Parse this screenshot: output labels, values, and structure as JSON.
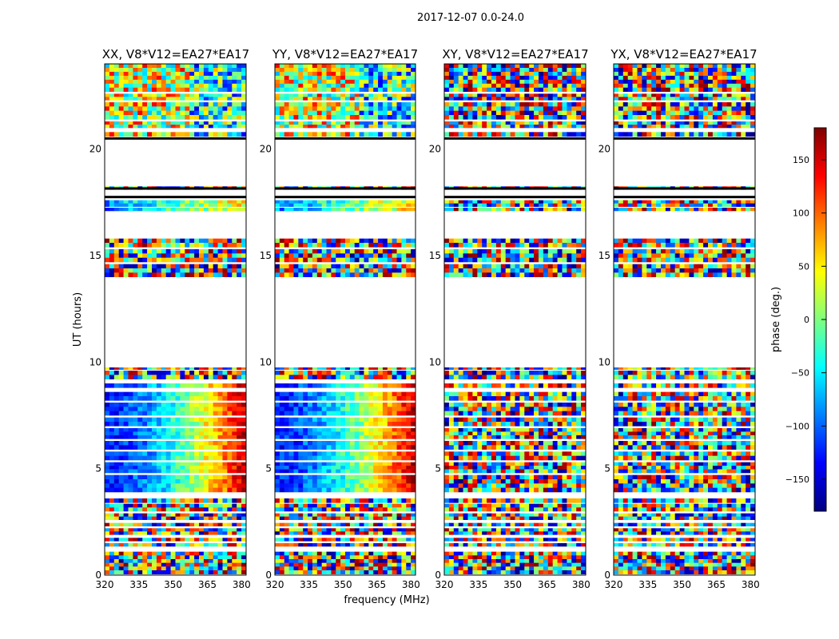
{
  "chart_data": {
    "type": "heatmap",
    "title": "2017-12-07 0.0-24.0",
    "xlabel": "frequency (MHz)",
    "ylabel": "UT (hours)",
    "xlim": [
      320,
      382
    ],
    "ylim": [
      0,
      24
    ],
    "x_ticks": [
      "320",
      "335",
      "350",
      "365",
      "380"
    ],
    "y_ticks": [
      "0",
      "5",
      "10",
      "15",
      "20"
    ],
    "panels": [
      {
        "title": "XX, V8*V12=EA27*EA17",
        "kind": "parallel"
      },
      {
        "title": "YY, V8*V12=EA27*EA17",
        "kind": "parallel"
      },
      {
        "title": "XY, V8*V12=EA27*EA17",
        "kind": "cross"
      },
      {
        "title": "YX, V8*V12=EA27*EA17",
        "kind": "cross"
      }
    ],
    "data_intervals_ut": [
      [
        0.05,
        1.1
      ],
      [
        1.35,
        1.5
      ],
      [
        1.6,
        1.75
      ],
      [
        1.9,
        2.2
      ],
      [
        2.3,
        2.45
      ],
      [
        2.6,
        2.9
      ],
      [
        3.0,
        3.35
      ],
      [
        3.4,
        3.6
      ],
      [
        3.9,
        4.7
      ],
      [
        4.8,
        5.3
      ],
      [
        5.4,
        5.8
      ],
      [
        5.9,
        6.3
      ],
      [
        6.4,
        6.9
      ],
      [
        7.0,
        7.4
      ],
      [
        7.5,
        8.1
      ],
      [
        8.2,
        8.6
      ],
      [
        8.8,
        9.0
      ],
      [
        9.2,
        9.6
      ],
      [
        9.65,
        9.75
      ],
      [
        14.0,
        14.6
      ],
      [
        14.7,
        15.3
      ],
      [
        15.4,
        15.8
      ],
      [
        17.1,
        17.25
      ],
      [
        17.3,
        17.6
      ],
      [
        18.1,
        18.25
      ],
      [
        20.6,
        20.8
      ],
      [
        21.0,
        21.3
      ],
      [
        21.4,
        22.2
      ],
      [
        22.3,
        22.6
      ],
      [
        22.7,
        24.0
      ]
    ],
    "colorbar": {
      "label": "phase (deg.)",
      "range": [
        -180,
        180
      ],
      "ticks": [
        "150",
        "100",
        "50",
        "0",
        "−50",
        "−100",
        "−150"
      ],
      "tick_values": [
        150,
        100,
        50,
        0,
        -50,
        -100,
        -150
      ],
      "colormap": "jet"
    }
  }
}
